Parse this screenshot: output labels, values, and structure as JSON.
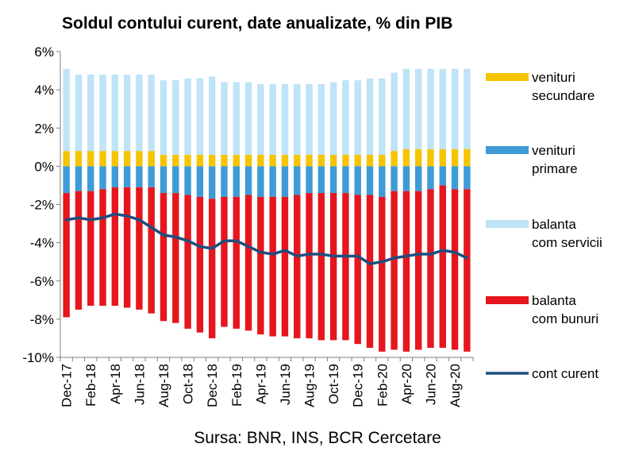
{
  "chart_data": {
    "type": "bar",
    "title": "Soldul contului curent, date anualizate, % din PIB",
    "source": "Sursa: BNR, INS, BCR Cercetare",
    "ylim": [
      -10,
      6
    ],
    "yticks": [
      "6%",
      "4%",
      "2%",
      "0%",
      "-2%",
      "-4%",
      "-6%",
      "-8%",
      "-10%"
    ],
    "grid": false,
    "legend_position": "right",
    "categories": [
      "Dec-17",
      "Jan-18",
      "Feb-18",
      "Mar-18",
      "Apr-18",
      "May-18",
      "Jun-18",
      "Jul-18",
      "Aug-18",
      "Sep-18",
      "Oct-18",
      "Nov-18",
      "Dec-18",
      "Jan-19",
      "Feb-19",
      "Mar-19",
      "Apr-19",
      "May-19",
      "Jun-19",
      "Jul-19",
      "Aug-19",
      "Sep-19",
      "Oct-19",
      "Nov-19",
      "Dec-19",
      "Jan-20",
      "Feb-20",
      "Mar-20",
      "Apr-20",
      "May-20",
      "Jun-20",
      "Jul-20",
      "Aug-20",
      "Sep-20"
    ],
    "xtick_labels": [
      "Dec-17",
      "",
      "Feb-18",
      "",
      "Apr-18",
      "",
      "Jun-18",
      "",
      "Aug-18",
      "",
      "Oct-18",
      "",
      "Dec-18",
      "",
      "Feb-19",
      "",
      "Apr-19",
      "",
      "Jun-19",
      "",
      "Aug-19",
      "",
      "Oct-19",
      "",
      "Dec-19",
      "",
      "Feb-20",
      "",
      "Apr-20",
      "",
      "Jun-20",
      "",
      "Aug-20",
      ""
    ],
    "series": [
      {
        "name": "venituri secundare",
        "type": "bar",
        "color": "#F5C400",
        "values": [
          0.8,
          0.8,
          0.8,
          0.8,
          0.8,
          0.8,
          0.8,
          0.8,
          0.6,
          0.6,
          0.6,
          0.6,
          0.6,
          0.6,
          0.6,
          0.6,
          0.6,
          0.6,
          0.6,
          0.6,
          0.6,
          0.6,
          0.6,
          0.6,
          0.6,
          0.6,
          0.6,
          0.8,
          0.9,
          0.9,
          0.9,
          0.9,
          0.9,
          0.9
        ]
      },
      {
        "name": "venituri primare",
        "type": "bar",
        "color": "#3E9BD6",
        "values": [
          -1.4,
          -1.3,
          -1.3,
          -1.2,
          -1.1,
          -1.1,
          -1.1,
          -1.1,
          -1.4,
          -1.4,
          -1.5,
          -1.6,
          -1.7,
          -1.6,
          -1.6,
          -1.5,
          -1.6,
          -1.6,
          -1.6,
          -1.5,
          -1.4,
          -1.4,
          -1.4,
          -1.4,
          -1.5,
          -1.5,
          -1.6,
          -1.3,
          -1.3,
          -1.3,
          -1.2,
          -1.0,
          -1.2,
          -1.2
        ]
      },
      {
        "name": "balanta com servicii",
        "type": "bar",
        "color": "#BFE3F7",
        "values": [
          4.3,
          4.0,
          4.0,
          4.0,
          4.0,
          4.0,
          4.0,
          4.0,
          3.9,
          3.9,
          4.0,
          4.0,
          4.1,
          3.8,
          3.8,
          3.8,
          3.7,
          3.7,
          3.7,
          3.7,
          3.7,
          3.7,
          3.8,
          3.9,
          3.9,
          4.0,
          4.0,
          4.1,
          4.2,
          4.2,
          4.2,
          4.2,
          4.2,
          4.2
        ]
      },
      {
        "name": "balanta com bunuri",
        "type": "bar",
        "color": "#E5161D",
        "values": [
          -6.5,
          -6.2,
          -6.0,
          -6.1,
          -6.2,
          -6.3,
          -6.4,
          -6.6,
          -6.7,
          -6.8,
          -7.0,
          -7.1,
          -7.3,
          -6.8,
          -6.9,
          -7.1,
          -7.2,
          -7.3,
          -7.3,
          -7.5,
          -7.6,
          -7.7,
          -7.7,
          -7.7,
          -7.8,
          -8.0,
          -8.1,
          -8.3,
          -8.4,
          -8.3,
          -8.3,
          -8.5,
          -8.4,
          -8.5
        ]
      },
      {
        "name": "cont curent",
        "type": "line",
        "color": "#1C4E80",
        "values": [
          -2.8,
          -2.7,
          -2.8,
          -2.7,
          -2.5,
          -2.6,
          -2.8,
          -3.2,
          -3.6,
          -3.7,
          -3.9,
          -4.2,
          -4.3,
          -3.9,
          -3.9,
          -4.2,
          -4.5,
          -4.6,
          -4.4,
          -4.7,
          -4.6,
          -4.6,
          -4.7,
          -4.7,
          -4.7,
          -5.1,
          -5.0,
          -4.8,
          -4.7,
          -4.6,
          -4.6,
          -4.4,
          -4.5,
          -4.8
        ]
      }
    ],
    "legend": [
      {
        "series": "venituri secundare",
        "lines": [
          "venituri",
          "secundare"
        ]
      },
      {
        "series": "venituri primare",
        "lines": [
          "venituri",
          "primare"
        ]
      },
      {
        "series": "balanta com servicii",
        "lines": [
          "balanta",
          "com servicii"
        ]
      },
      {
        "series": "balanta com bunuri",
        "lines": [
          "balanta",
          "com bunuri"
        ]
      },
      {
        "series": "cont curent",
        "lines": [
          "cont curent"
        ]
      }
    ]
  }
}
